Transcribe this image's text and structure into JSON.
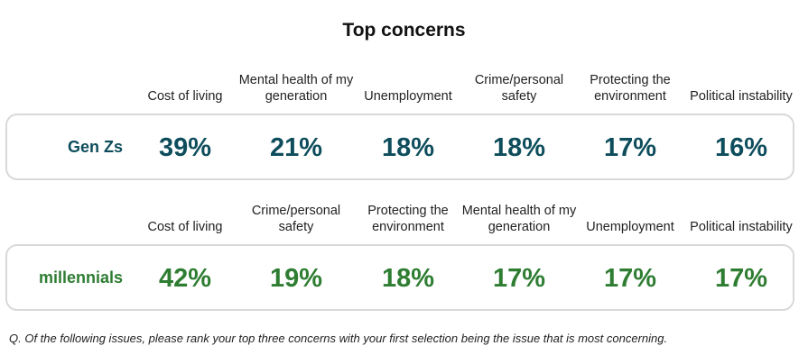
{
  "title": "Top concerns",
  "colors": {
    "genz": "#0e4d5c",
    "millennials": "#2e7d32"
  },
  "chart_data": {
    "type": "table",
    "title": "Top concerns",
    "groups": [
      {
        "name": "Gen Zs",
        "categories": [
          "Cost of living",
          "Mental health of my generation",
          "Unemployment",
          "Crime/personal safety",
          "Protecting the environment",
          "Political instability"
        ],
        "values": [
          "39%",
          "21%",
          "18%",
          "18%",
          "17%",
          "16%"
        ]
      },
      {
        "name": "millennials",
        "categories": [
          "Cost of living",
          "Crime/personal safety",
          "Protecting the environment",
          "Mental health of my generation",
          "Unemployment",
          "Political instability"
        ],
        "values": [
          "42%",
          "19%",
          "18%",
          "17%",
          "17%",
          "17%"
        ]
      }
    ]
  },
  "footnote": "Q. Of the following issues, please rank your top three concerns with your first selection being the issue that is most concerning."
}
